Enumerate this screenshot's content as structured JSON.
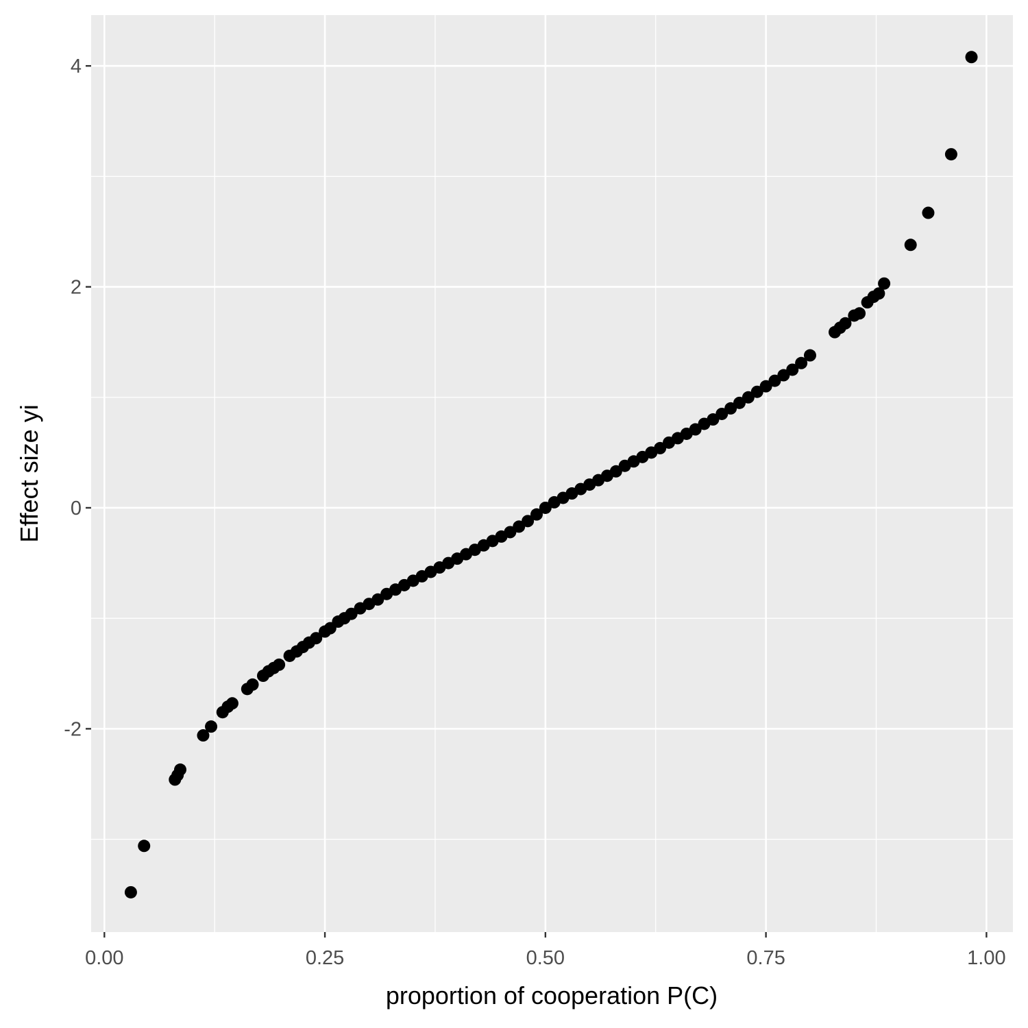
{
  "chart_data": {
    "type": "scatter",
    "title": "",
    "xlabel": "proportion of cooperation P(C)",
    "ylabel": "Effect size yi",
    "xlim": [
      -0.015,
      1.03
    ],
    "ylim": [
      -3.84,
      4.46
    ],
    "x_ticks": [
      {
        "value": 0.0,
        "label": "0.00"
      },
      {
        "value": 0.25,
        "label": "0.25"
      },
      {
        "value": 0.5,
        "label": "0.50"
      },
      {
        "value": 0.75,
        "label": "0.75"
      },
      {
        "value": 1.0,
        "label": "1.00"
      }
    ],
    "y_ticks": [
      {
        "value": -2,
        "label": "-2"
      },
      {
        "value": 0,
        "label": "0"
      },
      {
        "value": 2,
        "label": "2"
      },
      {
        "value": 4,
        "label": "4"
      }
    ],
    "x_minor_ticks": [
      0.125,
      0.375,
      0.625,
      0.875
    ],
    "y_minor_ticks": [
      -3,
      -1,
      1,
      3
    ],
    "grid": true,
    "legend": "none",
    "colors": {
      "panel_background": "#ebebeb",
      "grid": "#ffffff",
      "points": "#000000",
      "tick_text": "#4d4d4d",
      "axis_title": "#000000"
    },
    "points": [
      {
        "x": 0.03,
        "y": -3.48
      },
      {
        "x": 0.045,
        "y": -3.06
      },
      {
        "x": 0.08,
        "y": -2.46
      },
      {
        "x": 0.083,
        "y": -2.42
      },
      {
        "x": 0.086,
        "y": -2.37
      },
      {
        "x": 0.112,
        "y": -2.06
      },
      {
        "x": 0.121,
        "y": -1.98
      },
      {
        "x": 0.134,
        "y": -1.85
      },
      {
        "x": 0.14,
        "y": -1.8
      },
      {
        "x": 0.145,
        "y": -1.77
      },
      {
        "x": 0.162,
        "y": -1.64
      },
      {
        "x": 0.168,
        "y": -1.6
      },
      {
        "x": 0.18,
        "y": -1.52
      },
      {
        "x": 0.186,
        "y": -1.48
      },
      {
        "x": 0.192,
        "y": -1.45
      },
      {
        "x": 0.198,
        "y": -1.42
      },
      {
        "x": 0.21,
        "y": -1.34
      },
      {
        "x": 0.218,
        "y": -1.3
      },
      {
        "x": 0.225,
        "y": -1.26
      },
      {
        "x": 0.232,
        "y": -1.22
      },
      {
        "x": 0.24,
        "y": -1.18
      },
      {
        "x": 0.25,
        "y": -1.12
      },
      {
        "x": 0.256,
        "y": -1.09
      },
      {
        "x": 0.265,
        "y": -1.03
      },
      {
        "x": 0.272,
        "y": -1.0
      },
      {
        "x": 0.28,
        "y": -0.96
      },
      {
        "x": 0.29,
        "y": -0.91
      },
      {
        "x": 0.3,
        "y": -0.87
      },
      {
        "x": 0.31,
        "y": -0.83
      },
      {
        "x": 0.32,
        "y": -0.78
      },
      {
        "x": 0.33,
        "y": -0.74
      },
      {
        "x": 0.34,
        "y": -0.7
      },
      {
        "x": 0.35,
        "y": -0.66
      },
      {
        "x": 0.36,
        "y": -0.62
      },
      {
        "x": 0.37,
        "y": -0.58
      },
      {
        "x": 0.38,
        "y": -0.54
      },
      {
        "x": 0.39,
        "y": -0.5
      },
      {
        "x": 0.4,
        "y": -0.46
      },
      {
        "x": 0.41,
        "y": -0.42
      },
      {
        "x": 0.42,
        "y": -0.38
      },
      {
        "x": 0.43,
        "y": -0.34
      },
      {
        "x": 0.44,
        "y": -0.3
      },
      {
        "x": 0.45,
        "y": -0.26
      },
      {
        "x": 0.46,
        "y": -0.22
      },
      {
        "x": 0.47,
        "y": -0.17
      },
      {
        "x": 0.48,
        "y": -0.12
      },
      {
        "x": 0.49,
        "y": -0.06
      },
      {
        "x": 0.5,
        "y": 0.0
      },
      {
        "x": 0.51,
        "y": 0.05
      },
      {
        "x": 0.52,
        "y": 0.09
      },
      {
        "x": 0.53,
        "y": 0.13
      },
      {
        "x": 0.54,
        "y": 0.17
      },
      {
        "x": 0.55,
        "y": 0.21
      },
      {
        "x": 0.56,
        "y": 0.25
      },
      {
        "x": 0.57,
        "y": 0.29
      },
      {
        "x": 0.58,
        "y": 0.33
      },
      {
        "x": 0.59,
        "y": 0.38
      },
      {
        "x": 0.6,
        "y": 0.42
      },
      {
        "x": 0.61,
        "y": 0.46
      },
      {
        "x": 0.62,
        "y": 0.5
      },
      {
        "x": 0.63,
        "y": 0.54
      },
      {
        "x": 0.64,
        "y": 0.59
      },
      {
        "x": 0.65,
        "y": 0.63
      },
      {
        "x": 0.66,
        "y": 0.67
      },
      {
        "x": 0.67,
        "y": 0.71
      },
      {
        "x": 0.68,
        "y": 0.76
      },
      {
        "x": 0.69,
        "y": 0.8
      },
      {
        "x": 0.7,
        "y": 0.85
      },
      {
        "x": 0.71,
        "y": 0.9
      },
      {
        "x": 0.72,
        "y": 0.95
      },
      {
        "x": 0.73,
        "y": 1.0
      },
      {
        "x": 0.74,
        "y": 1.05
      },
      {
        "x": 0.75,
        "y": 1.1
      },
      {
        "x": 0.76,
        "y": 1.15
      },
      {
        "x": 0.77,
        "y": 1.2
      },
      {
        "x": 0.78,
        "y": 1.25
      },
      {
        "x": 0.79,
        "y": 1.31
      },
      {
        "x": 0.8,
        "y": 1.38
      },
      {
        "x": 0.828,
        "y": 1.59
      },
      {
        "x": 0.834,
        "y": 1.63
      },
      {
        "x": 0.84,
        "y": 1.67
      },
      {
        "x": 0.85,
        "y": 1.74
      },
      {
        "x": 0.856,
        "y": 1.76
      },
      {
        "x": 0.865,
        "y": 1.86
      },
      {
        "x": 0.872,
        "y": 1.91
      },
      {
        "x": 0.878,
        "y": 1.94
      },
      {
        "x": 0.884,
        "y": 2.03
      },
      {
        "x": 0.914,
        "y": 2.38
      },
      {
        "x": 0.934,
        "y": 2.67
      },
      {
        "x": 0.96,
        "y": 3.2
      },
      {
        "x": 0.983,
        "y": 4.08
      }
    ]
  }
}
